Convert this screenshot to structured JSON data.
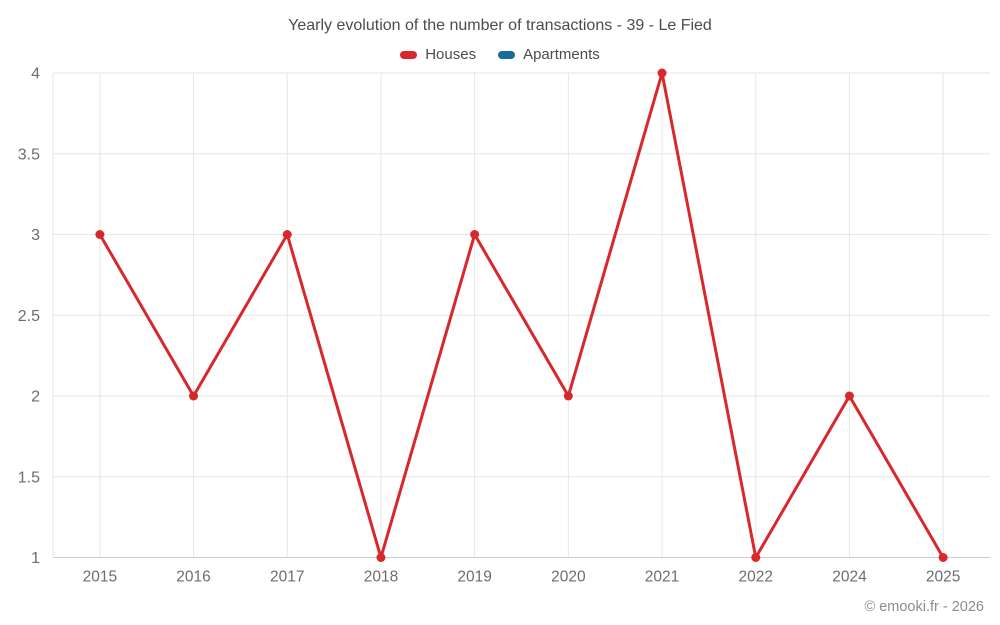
{
  "header": {
    "title": "Yearly evolution of the number of transactions - 39 - Le Fied"
  },
  "legend": {
    "items": [
      {
        "label": "Houses",
        "color": "#d7282c"
      },
      {
        "label": "Apartments",
        "color": "#1a6d9b"
      }
    ]
  },
  "footer": {
    "credit": "© emooki.fr - 2026"
  },
  "chart_data": {
    "type": "line",
    "title": "Yearly evolution of the number of transactions - 39 - Le Fied",
    "categories": [
      "2015",
      "2016",
      "2017",
      "2018",
      "2019",
      "2020",
      "2021",
      "2022",
      "2024",
      "2025"
    ],
    "series": [
      {
        "name": "Houses",
        "color": "#d7282c",
        "values": [
          3,
          2,
          3,
          1,
          3,
          2,
          4,
          1,
          2,
          1
        ]
      },
      {
        "name": "Apartments",
        "color": "#1a6d9b",
        "values": [
          null,
          null,
          null,
          null,
          null,
          null,
          null,
          null,
          null,
          null
        ]
      }
    ],
    "xlabel": "",
    "ylabel": "",
    "ylim": [
      1,
      4
    ],
    "yticks": [
      1,
      1.5,
      2,
      2.5,
      3,
      3.5,
      4
    ],
    "grid": true,
    "legend_position": "top",
    "colors": {
      "grid_line": "#e6e6e6",
      "axis_line": "#cccccc",
      "tick_label": "#6d6d6d"
    }
  }
}
